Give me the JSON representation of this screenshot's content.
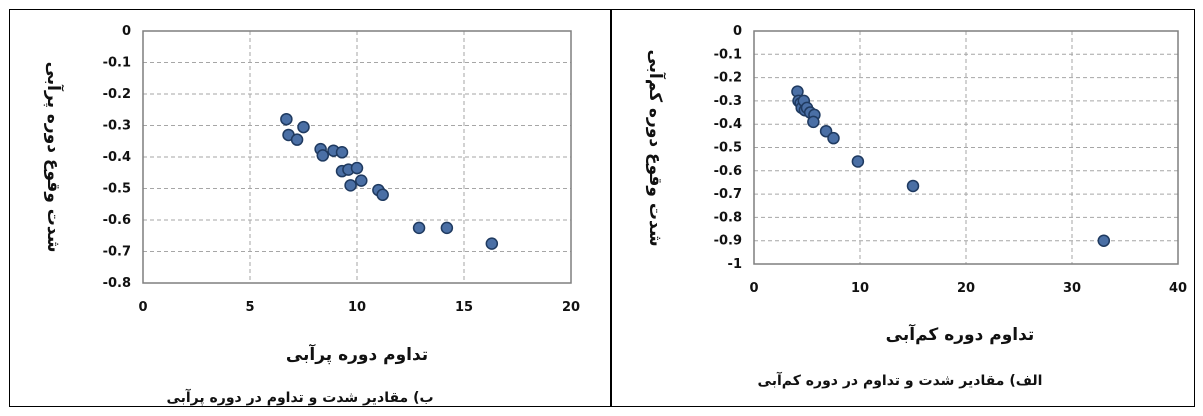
{
  "charts": [
    {
      "chart_data": {
        "type": "scatter",
        "xlabel": "تداوم دوره پرآبی",
        "ylabel": "شدت وقوع دوره پرآبی",
        "caption": "ب) مقادیر شدت و تداوم در دوره پرآبی",
        "xlim": [
          0,
          20
        ],
        "ylim": [
          -0.8,
          0
        ],
        "xticks": [
          "0",
          "5",
          "10",
          "15",
          "20"
        ],
        "yticks": [
          "0",
          "-0.1",
          "-0.2",
          "-0.3",
          "-0.4",
          "-0.5",
          "-0.6",
          "-0.7",
          "-0.8"
        ],
        "grid": true,
        "x": [
          6.7,
          6.8,
          7.2,
          7.5,
          8.3,
          8.4,
          8.9,
          9.3,
          9.3,
          9.6,
          9.7,
          10.0,
          10.2,
          11.0,
          11.2,
          12.9,
          14.2,
          16.3
        ],
        "y": [
          -0.28,
          -0.33,
          -0.345,
          -0.305,
          -0.375,
          -0.395,
          -0.38,
          -0.385,
          -0.445,
          -0.44,
          -0.49,
          -0.435,
          -0.475,
          -0.505,
          -0.52,
          -0.625,
          -0.625,
          -0.675
        ]
      }
    },
    {
      "chart_data": {
        "type": "scatter",
        "xlabel": "تداوم دوره کم‌آبی",
        "ylabel": "شدت وقوع دوره کم‌آبی",
        "caption": "الف) مقادیر شدت و تداوم در دوره کم‌آبی",
        "xlim": [
          0,
          40
        ],
        "ylim": [
          -1,
          0
        ],
        "xticks": [
          "0",
          "10",
          "20",
          "30",
          "40"
        ],
        "yticks": [
          "0",
          "-0.1",
          "-0.2",
          "-0.3",
          "-0.4",
          "-0.5",
          "-0.6",
          "-0.7",
          "-0.8",
          "-0.9",
          "-1"
        ],
        "grid": true,
        "x": [
          4.1,
          4.2,
          4.4,
          4.5,
          4.7,
          4.8,
          5.0,
          5.3,
          5.7,
          5.6,
          6.8,
          7.5,
          9.8,
          15.0,
          33.0
        ],
        "y": [
          -0.26,
          -0.3,
          -0.31,
          -0.33,
          -0.3,
          -0.34,
          -0.33,
          -0.35,
          -0.36,
          -0.39,
          -0.43,
          -0.46,
          -0.56,
          -0.665,
          -0.9
        ]
      }
    }
  ],
  "colors": {
    "point_fill": "#4a6fa5",
    "point_stroke": "#1f3a60",
    "grid": "#a6a6a6",
    "axis": "#7f7f7f"
  }
}
